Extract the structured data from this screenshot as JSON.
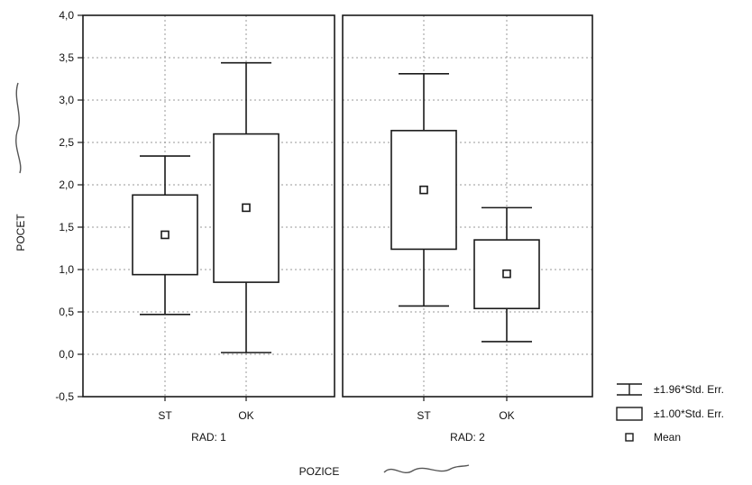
{
  "chart_data": {
    "type": "box",
    "ylabel": "POCET",
    "xlabel": "POZICE",
    "ylim": [
      -0.5,
      4.0
    ],
    "yticks": [
      "4,0",
      "3,5",
      "3,0",
      "2,5",
      "2,0",
      "1,5",
      "1,0",
      "0,5",
      "0,0",
      "-0,5"
    ],
    "ytick_values": [
      4.0,
      3.5,
      3.0,
      2.5,
      2.0,
      1.5,
      1.0,
      0.5,
      0.0,
      -0.5
    ],
    "grid": true,
    "legend_position": "bottom-right",
    "panels": [
      {
        "label": "RAD: 1",
        "categories": [
          "ST",
          "OK"
        ],
        "groups": [
          {
            "category": "ST",
            "mean": 1.41,
            "se_low": 0.94,
            "se_high": 1.88,
            "ci_low": 0.47,
            "ci_high": 2.34
          },
          {
            "category": "OK",
            "mean": 1.73,
            "se_low": 0.85,
            "se_high": 2.6,
            "ci_low": 0.02,
            "ci_high": 3.44
          }
        ]
      },
      {
        "label": "RAD: 2",
        "categories": [
          "ST",
          "OK"
        ],
        "groups": [
          {
            "category": "ST",
            "mean": 1.94,
            "se_low": 1.24,
            "se_high": 2.64,
            "ci_low": 0.57,
            "ci_high": 3.31
          },
          {
            "category": "OK",
            "mean": 0.95,
            "se_low": 0.54,
            "se_high": 1.35,
            "ci_low": 0.15,
            "ci_high": 1.73
          }
        ]
      }
    ],
    "legend": [
      {
        "symbol": "whisker",
        "label": "±1.96*Std. Err."
      },
      {
        "symbol": "box",
        "label": "±1.00*Std. Err."
      },
      {
        "symbol": "point",
        "label": "Mean"
      }
    ],
    "colors": {
      "line": "#1a1a1a",
      "grid": "#9a9a9a",
      "box_fill": "#ffffff"
    }
  }
}
